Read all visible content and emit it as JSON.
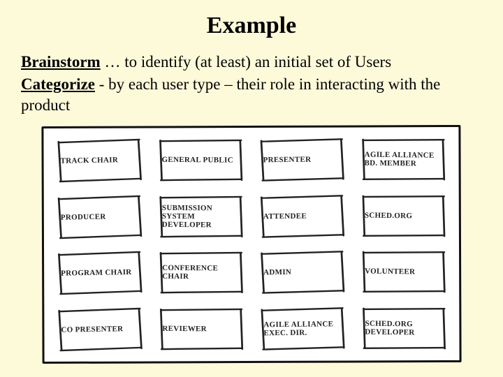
{
  "background_color": "#fdfada",
  "title": "Example",
  "title_fontsize": 34,
  "body_fontsize": 23,
  "lines": [
    {
      "lead": "Brainstorm",
      "rest": " … to identify (at least) an initial set of Users"
    },
    {
      "lead": "Categorize",
      "rest": " - by each user type – their role in interacting with the product"
    }
  ],
  "card_area": {
    "background_color": "#ffffff",
    "border_color": "#111111",
    "rows": 4,
    "cols": 4,
    "card_border_color": "#222222",
    "card_text_color": "#222222",
    "card_fontsize": 11,
    "cards": [
      "TRACK CHAIR",
      "GENERAL PUBLIC",
      "PRESENTER",
      "AGILE ALLIANCE BD. MEMBER",
      "PRODUCER",
      "SUBMISSION SYSTEM DEVELOPER",
      "ATTENDEE",
      "SCHED.ORG",
      "PROGRAM CHAIR",
      "CONFERENCE CHAIR",
      "ADMIN",
      "VOLUNTEER",
      "CO PRESENTER",
      "REVIEWER",
      "AGILE ALLIANCE EXEC. DIR.",
      "SCHED.ORG DEVELOPER"
    ]
  }
}
